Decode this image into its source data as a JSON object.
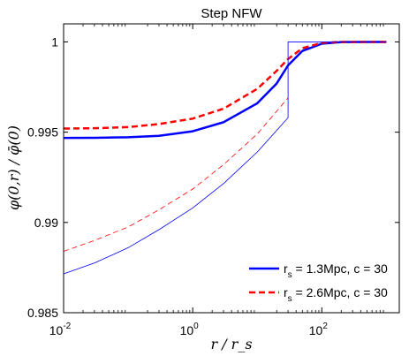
{
  "chart_data": {
    "type": "line",
    "title": "Step NFW",
    "xlabel": "r / r_s",
    "ylabel": "φ(0,r) / φ̄(0)",
    "xscale": "log",
    "xlim": [
      0.01,
      1585
    ],
    "ylim": [
      0.985,
      1.001
    ],
    "xtick_values": [
      0.01,
      1,
      100
    ],
    "xtick_bases": [
      "10",
      "10",
      "10"
    ],
    "xtick_exponents": [
      "-2",
      "0",
      "2"
    ],
    "ytick_values": [
      0.985,
      0.99,
      0.995,
      1
    ],
    "ytick_labels": [
      "0.985",
      "0.99",
      "0.995",
      "1"
    ],
    "grid": false,
    "legend_position": "bottom-right",
    "series": [
      {
        "name": "r_s = 1.3Mpc, c = 30",
        "label_main": "r",
        "label_sub": "s",
        "label_rest": " = 1.3Mpc, c = 30",
        "color": "#0000ff",
        "style": "solid",
        "width": "thick",
        "x": [
          0.01,
          0.03,
          0.1,
          0.3,
          1,
          3,
          10,
          20,
          30,
          50,
          100,
          200,
          500,
          1000
        ],
        "y": [
          0.99468,
          0.99469,
          0.99472,
          0.9948,
          0.99505,
          0.99555,
          0.9966,
          0.9977,
          0.9987,
          0.9995,
          0.9999,
          0.99999,
          1.0,
          1.0
        ]
      },
      {
        "name": "r_s = 2.6Mpc, c = 30",
        "label_main": "r",
        "label_sub": "s",
        "label_rest": " = 2.6Mpc, c = 30",
        "color": "#ff0000",
        "style": "dashed",
        "width": "thick",
        "x": [
          0.01,
          0.03,
          0.1,
          0.3,
          1,
          3,
          10,
          20,
          30,
          50,
          100,
          200,
          500,
          1000
        ],
        "y": [
          0.9952,
          0.99522,
          0.99528,
          0.99545,
          0.99575,
          0.9963,
          0.9974,
          0.9984,
          0.99905,
          0.99965,
          0.99995,
          1.0,
          1.0,
          1.0
        ]
      },
      {
        "color": "#0000ff",
        "style": "solid",
        "width": "thin",
        "x": [
          0.01,
          0.03,
          0.1,
          0.3,
          1,
          3,
          10,
          30,
          30,
          100,
          1000
        ],
        "y": [
          0.98715,
          0.98775,
          0.9886,
          0.9896,
          0.9908,
          0.99215,
          0.9939,
          0.9958,
          1.0,
          1.0,
          1.0
        ]
      },
      {
        "color": "#ff0000",
        "style": "dashed",
        "width": "thin",
        "x": [
          0.01,
          0.03,
          0.1,
          0.3,
          1,
          3,
          10,
          30
        ],
        "y": [
          0.9884,
          0.989,
          0.98975,
          0.9907,
          0.99185,
          0.9932,
          0.9949,
          0.9969
        ]
      }
    ]
  }
}
